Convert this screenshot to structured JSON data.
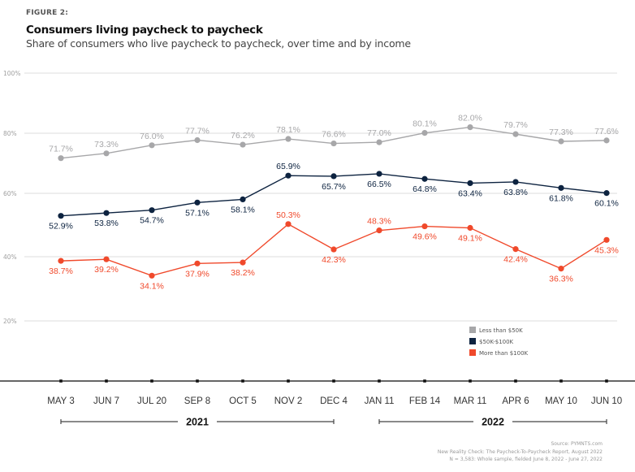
{
  "figure_label": "FIGURE 2:",
  "title": "Consumers living paycheck to paycheck",
  "subtitle": "Share of consumers who live paycheck to paycheck, over time and by income",
  "source": {
    "line1": "Source: PYMNTS.com",
    "line2": "New Reality Check: The Paycheck-To-Paycheck Report, August 2022",
    "line3": "N = 3,583: Whole sample, fielded June 8, 2022 - June 27, 2022"
  },
  "chart_data": {
    "type": "line",
    "title": "Consumers living paycheck to paycheck",
    "subtitle": "Share of consumers who live paycheck to paycheck, over time and by income",
    "xlabel": "",
    "ylabel": "",
    "ylim": [
      0,
      100
    ],
    "yticks": [
      20,
      40,
      60,
      80,
      100
    ],
    "ytick_labels": [
      "20%",
      "40%",
      "60%",
      "80%",
      "100%"
    ],
    "grid": true,
    "legend_position": "bottom-right",
    "categories": [
      "MAY 3",
      "JUN 7",
      "JUL 20",
      "SEP 8",
      "OCT 5",
      "NOV 2",
      "DEC 4",
      "JAN 11",
      "FEB 14",
      "MAR 11",
      "APR 6",
      "MAY 10",
      "JUN 10"
    ],
    "year_groups": [
      {
        "label": "2021",
        "from": 0,
        "to": 6
      },
      {
        "label": "2022",
        "from": 7,
        "to": 12
      }
    ],
    "series": [
      {
        "name": "Less than $50K",
        "color": "#a7a7a9",
        "label_position": "above",
        "values": [
          71.7,
          73.3,
          76.0,
          77.7,
          76.2,
          78.1,
          76.6,
          77.0,
          80.1,
          82.0,
          79.7,
          77.3,
          77.6
        ]
      },
      {
        "name": "$50K-$100K",
        "color": "#0d2340",
        "label_position": "mixed",
        "label_sides": [
          "below",
          "below",
          "below",
          "below",
          "below",
          "above",
          "below",
          "below",
          "below",
          "below",
          "below",
          "below",
          "below"
        ],
        "values": [
          52.9,
          53.8,
          54.7,
          57.1,
          58.1,
          65.9,
          65.7,
          66.5,
          64.8,
          63.4,
          63.8,
          61.8,
          60.1
        ]
      },
      {
        "name": "More than $100K",
        "color": "#f0492b",
        "label_position": "mixed",
        "label_sides": [
          "below",
          "below",
          "below",
          "below",
          "below",
          "above",
          "below",
          "above",
          "below",
          "below",
          "below",
          "below",
          "below"
        ],
        "values": [
          38.7,
          39.2,
          34.1,
          37.9,
          38.2,
          50.3,
          42.3,
          48.3,
          49.6,
          49.1,
          42.4,
          36.3,
          45.3
        ]
      }
    ]
  }
}
